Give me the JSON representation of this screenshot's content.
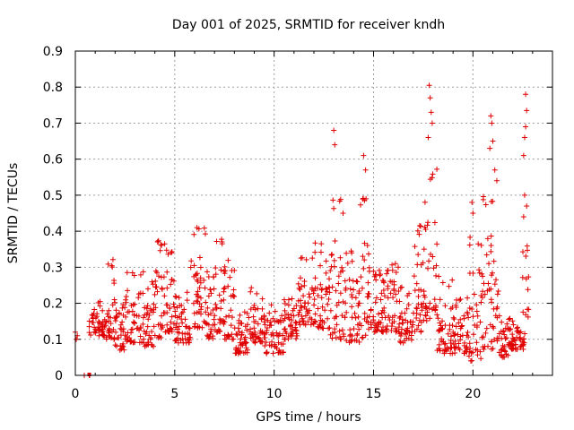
{
  "chart_data": {
    "type": "scatter",
    "title": "Day 001 of 2025, SRMTID for receiver kndh",
    "xlabel": "GPS time / hours",
    "ylabel": "SRMTID / TECUs",
    "xlim": [
      0,
      24
    ],
    "ylim": [
      0,
      0.9
    ],
    "xticks": [
      0,
      5,
      10,
      15,
      20
    ],
    "yticks": [
      0,
      0.1,
      0.2,
      0.3,
      0.4,
      0.5,
      0.6,
      0.7,
      0.8,
      0.9
    ],
    "grid": true,
    "marker": "plus",
    "color": "#e00000",
    "outlier_points": [
      [
        0.0,
        0.12
      ],
      [
        0.05,
        0.1
      ],
      [
        0.1,
        0.11
      ],
      [
        0.45,
        0.0
      ],
      [
        0.7,
        0.0
      ],
      [
        0.72,
        0.0
      ],
      [
        13.0,
        0.68
      ],
      [
        13.05,
        0.64
      ],
      [
        14.5,
        0.61
      ],
      [
        14.6,
        0.57
      ],
      [
        17.8,
        0.805
      ],
      [
        17.85,
        0.77
      ],
      [
        17.9,
        0.73
      ],
      [
        17.95,
        0.7
      ],
      [
        17.75,
        0.66
      ],
      [
        19.95,
        0.48
      ],
      [
        20.0,
        0.45
      ],
      [
        20.9,
        0.72
      ],
      [
        20.95,
        0.7
      ],
      [
        21.0,
        0.65
      ],
      [
        20.85,
        0.63
      ],
      [
        21.1,
        0.57
      ],
      [
        21.2,
        0.54
      ],
      [
        22.65,
        0.78
      ],
      [
        22.7,
        0.735
      ],
      [
        22.65,
        0.69
      ],
      [
        22.6,
        0.66
      ],
      [
        22.55,
        0.61
      ],
      [
        22.6,
        0.5
      ],
      [
        22.7,
        0.47
      ],
      [
        22.55,
        0.44
      ]
    ],
    "series_envelope": [
      {
        "x0": 0.7,
        "x1": 1.5,
        "low": 0.11,
        "high": 0.21
      },
      {
        "x0": 1.5,
        "x1": 2.0,
        "low": 0.1,
        "high": 0.34
      },
      {
        "x0": 2.0,
        "x1": 2.5,
        "low": 0.07,
        "high": 0.22
      },
      {
        "x0": 2.5,
        "x1": 3.5,
        "low": 0.09,
        "high": 0.3
      },
      {
        "x0": 3.5,
        "x1": 4.0,
        "low": 0.08,
        "high": 0.26
      },
      {
        "x0": 4.0,
        "x1": 4.5,
        "low": 0.1,
        "high": 0.4
      },
      {
        "x0": 4.5,
        "x1": 5.0,
        "low": 0.12,
        "high": 0.37
      },
      {
        "x0": 5.0,
        "x1": 5.8,
        "low": 0.09,
        "high": 0.24
      },
      {
        "x0": 5.8,
        "x1": 6.6,
        "low": 0.13,
        "high": 0.41
      },
      {
        "x0": 6.6,
        "x1": 7.0,
        "low": 0.1,
        "high": 0.31
      },
      {
        "x0": 7.0,
        "x1": 7.5,
        "low": 0.12,
        "high": 0.39
      },
      {
        "x0": 7.5,
        "x1": 8.0,
        "low": 0.1,
        "high": 0.33
      },
      {
        "x0": 8.0,
        "x1": 8.8,
        "low": 0.06,
        "high": 0.2
      },
      {
        "x0": 8.8,
        "x1": 9.5,
        "low": 0.09,
        "high": 0.25
      },
      {
        "x0": 9.5,
        "x1": 10.5,
        "low": 0.06,
        "high": 0.2
      },
      {
        "x0": 10.5,
        "x1": 11.2,
        "low": 0.1,
        "high": 0.23
      },
      {
        "x0": 11.2,
        "x1": 12.0,
        "low": 0.14,
        "high": 0.33
      },
      {
        "x0": 12.0,
        "x1": 12.8,
        "low": 0.13,
        "high": 0.38
      },
      {
        "x0": 12.8,
        "x1": 13.5,
        "low": 0.1,
        "high": 0.49
      },
      {
        "x0": 13.5,
        "x1": 14.3,
        "low": 0.09,
        "high": 0.35
      },
      {
        "x0": 14.3,
        "x1": 14.8,
        "low": 0.1,
        "high": 0.5
      },
      {
        "x0": 14.8,
        "x1": 15.5,
        "low": 0.12,
        "high": 0.3
      },
      {
        "x0": 15.5,
        "x1": 16.3,
        "low": 0.12,
        "high": 0.33
      },
      {
        "x0": 16.3,
        "x1": 17.0,
        "low": 0.09,
        "high": 0.26
      },
      {
        "x0": 17.0,
        "x1": 17.5,
        "low": 0.12,
        "high": 0.43
      },
      {
        "x0": 17.5,
        "x1": 18.2,
        "low": 0.15,
        "high": 0.58
      },
      {
        "x0": 18.2,
        "x1": 19.0,
        "low": 0.06,
        "high": 0.28
      },
      {
        "x0": 19.0,
        "x1": 19.8,
        "low": 0.06,
        "high": 0.22
      },
      {
        "x0": 19.8,
        "x1": 20.5,
        "low": 0.04,
        "high": 0.39
      },
      {
        "x0": 20.5,
        "x1": 21.3,
        "low": 0.07,
        "high": 0.5
      },
      {
        "x0": 21.3,
        "x1": 21.9,
        "low": 0.05,
        "high": 0.17
      },
      {
        "x0": 21.9,
        "x1": 22.5,
        "low": 0.07,
        "high": 0.16
      },
      {
        "x0": 22.5,
        "x1": 22.8,
        "low": 0.07,
        "high": 0.36
      }
    ]
  }
}
